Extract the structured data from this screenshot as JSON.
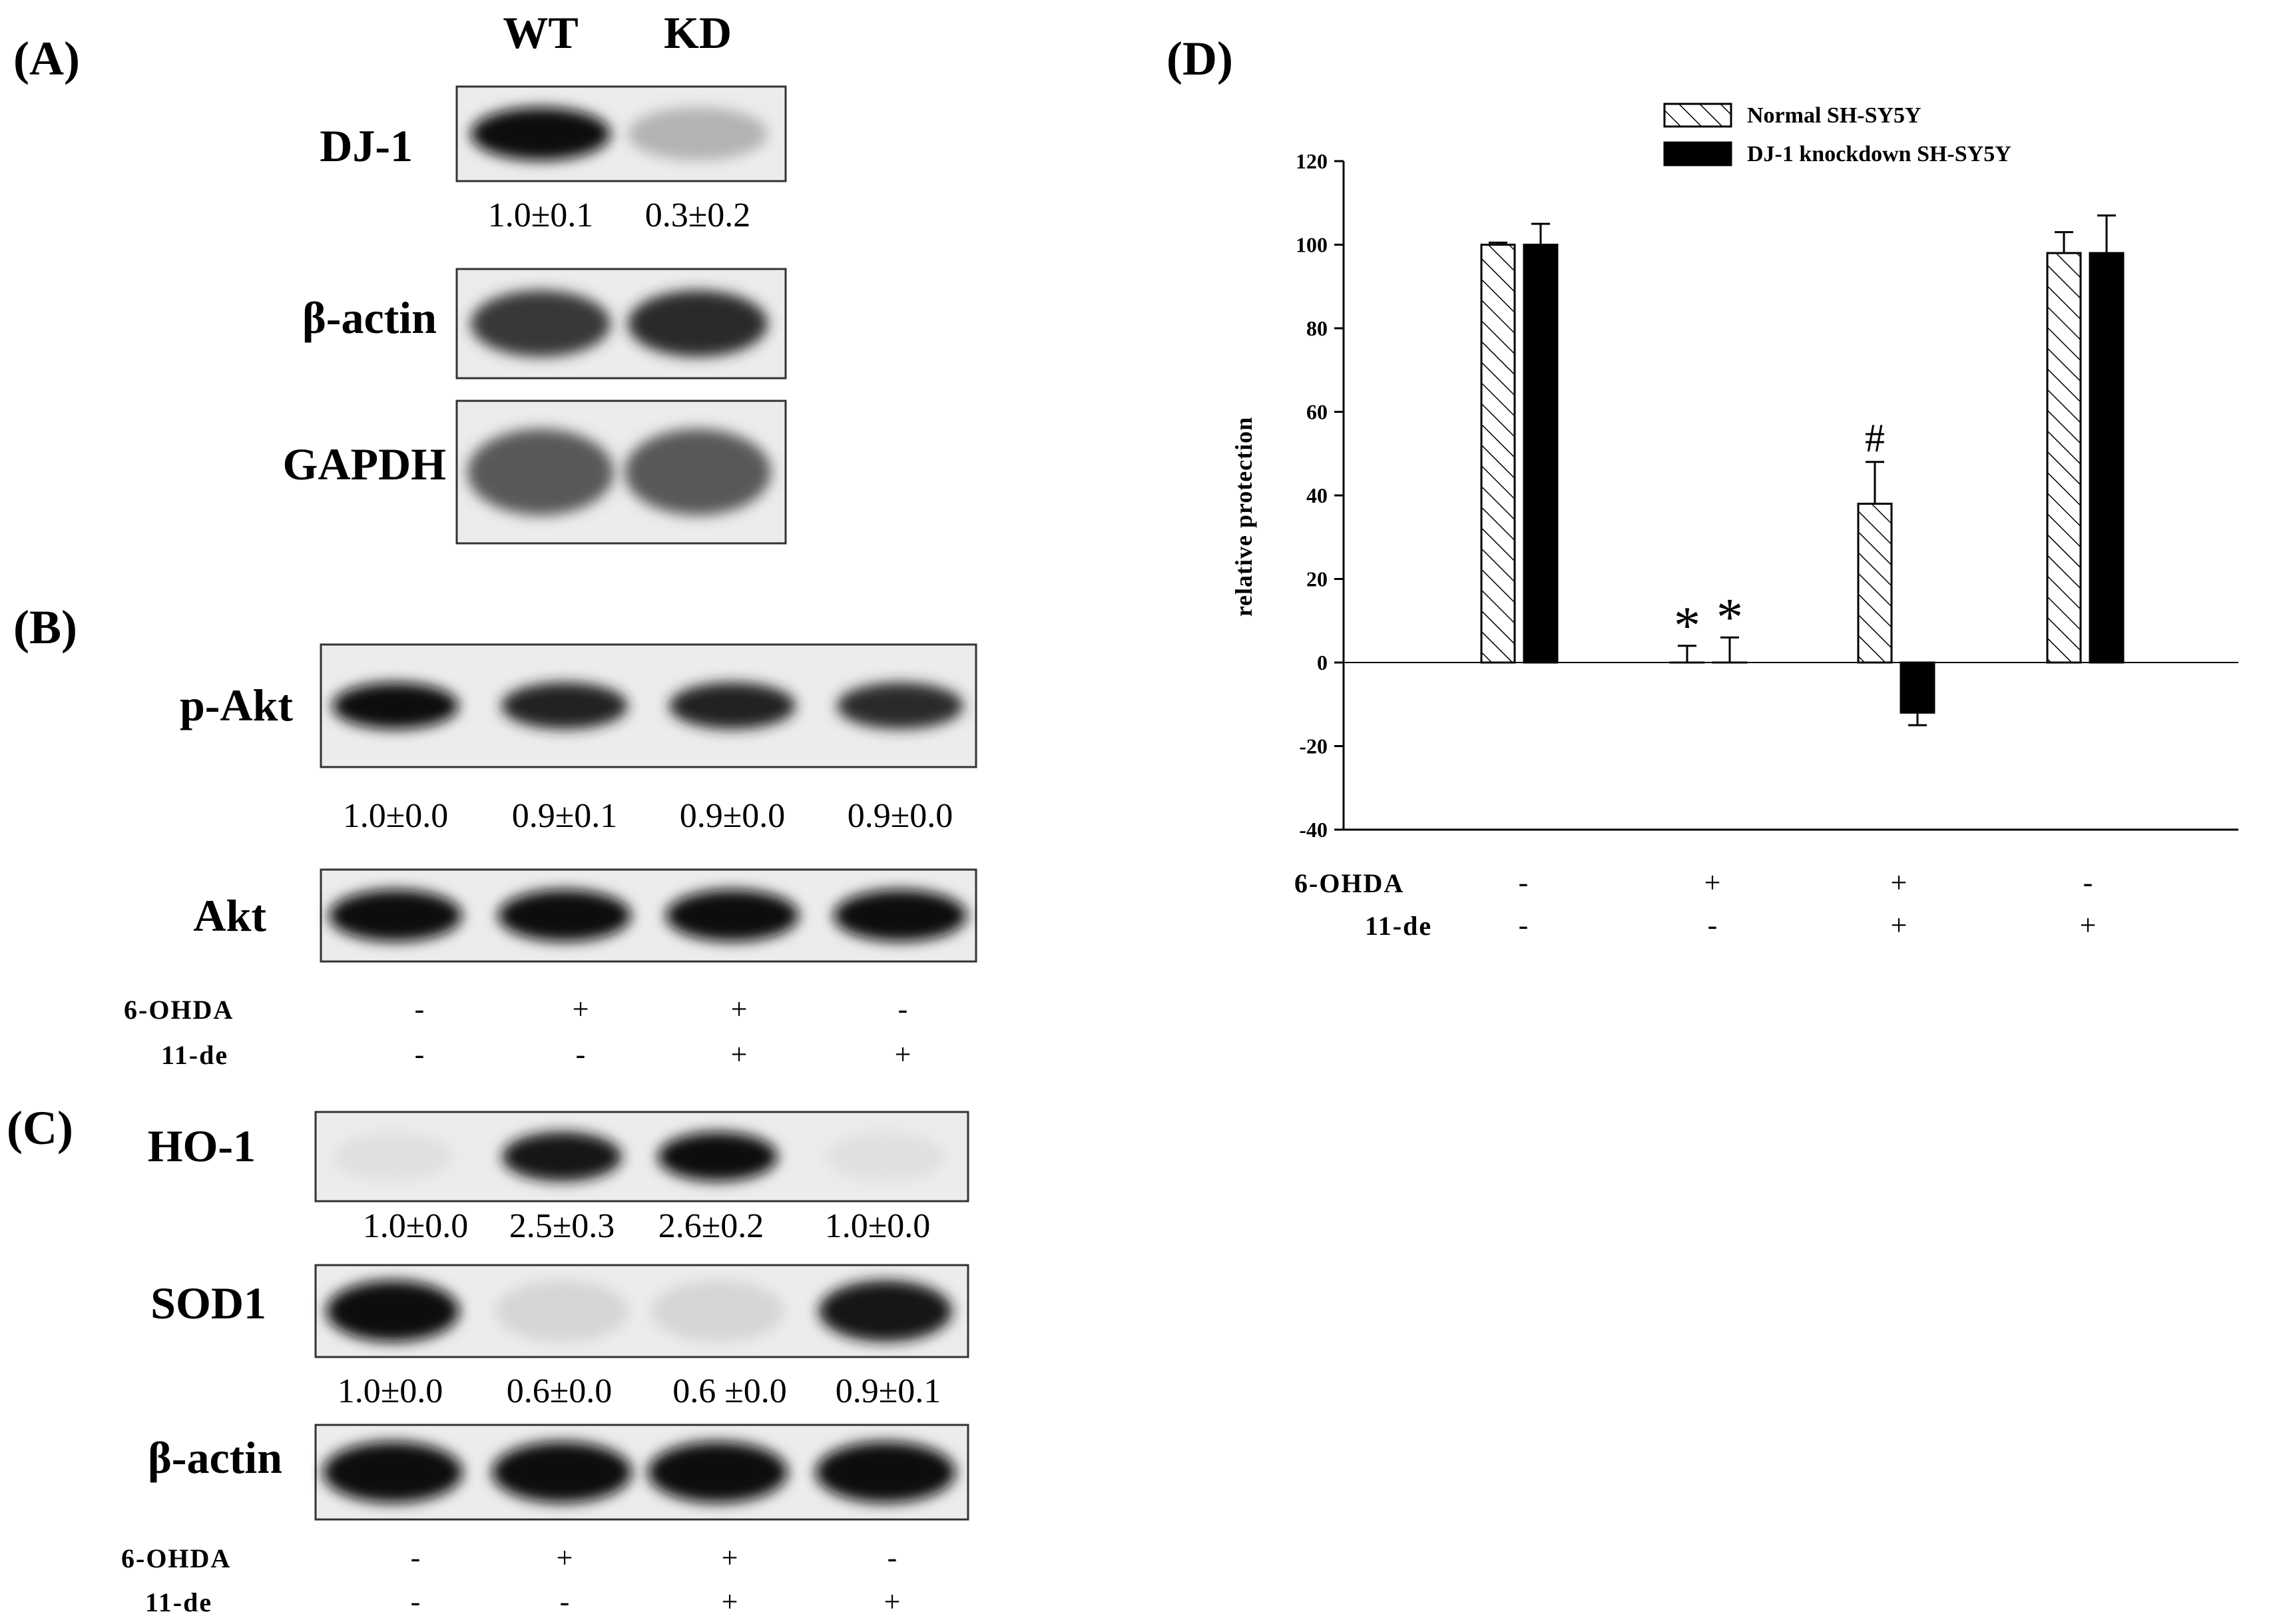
{
  "panel_labels": [
    "(A)",
    "(B)",
    "(C)",
    "(D)"
  ],
  "panel_a": {
    "lanes": [
      "WT",
      "KD"
    ],
    "blots": [
      {
        "name": "DJ-1",
        "quant": [
          "1.0±0.1",
          "0.3±0.2"
        ],
        "intensity": [
          1.0,
          0.25
        ]
      },
      {
        "name": "β-actin",
        "quant": [],
        "intensity": [
          0.8,
          0.85
        ]
      },
      {
        "name": "GAPDH",
        "quant": [],
        "intensity": [
          0.65,
          0.65
        ]
      }
    ]
  },
  "panel_b": {
    "blots": [
      {
        "name": "p-Akt",
        "quant": [
          "1.0±0.0",
          "0.9±0.1",
          "0.9±0.0",
          "0.9±0.0"
        ],
        "intensity": [
          1.0,
          0.9,
          0.9,
          0.85
        ]
      },
      {
        "name": "Akt",
        "quant": [],
        "intensity": [
          1.0,
          1.0,
          1.0,
          1.0
        ]
      }
    ],
    "treatments": [
      {
        "name": "6-OHDA",
        "signs": [
          "-",
          "+",
          "+",
          "-"
        ]
      },
      {
        "name": "11-de",
        "signs": [
          "-",
          "-",
          "+",
          "+"
        ]
      }
    ]
  },
  "panel_c": {
    "blots": [
      {
        "name": "HO-1",
        "quant": [
          "1.0±0.0",
          "2.5±0.3",
          "2.6±0.2",
          "1.0±0.0"
        ],
        "intensity": [
          0.05,
          0.95,
          1.0,
          0.05
        ]
      },
      {
        "name": "SOD1",
        "quant": [
          "1.0±0.0",
          "0.6±0.0",
          "0.6 ±0.0",
          "0.9±0.1"
        ],
        "intensity": [
          1.0,
          0.1,
          0.1,
          0.95
        ]
      },
      {
        "name": "β-actin",
        "quant": [],
        "intensity": [
          1.0,
          1.0,
          1.0,
          1.0
        ]
      }
    ],
    "treatments": [
      {
        "name": "6-OHDA",
        "signs": [
          "-",
          "+",
          "+",
          "-"
        ]
      },
      {
        "name": "11-de",
        "signs": [
          "-",
          "-",
          "+",
          "+"
        ]
      }
    ]
  },
  "chart_data": {
    "type": "bar",
    "title": "",
    "ylabel": "relative protection",
    "xlabel": "",
    "ylim": [
      -40,
      120
    ],
    "yticks": [
      -40,
      -20,
      0,
      20,
      40,
      60,
      80,
      100,
      120
    ],
    "grid": false,
    "legend_position": "top",
    "categories": [
      "1",
      "2",
      "3",
      "4"
    ],
    "series": [
      {
        "name": "Normal SH-SY5Y",
        "pattern": "hatched",
        "values": [
          100,
          0,
          38,
          98
        ],
        "errors": [
          0.5,
          4,
          10,
          5
        ]
      },
      {
        "name": "DJ-1 knockdown SH-SY5Y",
        "pattern": "solid",
        "values": [
          100,
          0,
          -12,
          98
        ],
        "errors": [
          5,
          6,
          3,
          9
        ]
      }
    ],
    "annotations": [
      {
        "text": "*",
        "category": 1,
        "series": 0
      },
      {
        "text": "*",
        "category": 1,
        "series": 1
      },
      {
        "text": "#",
        "category": 2,
        "series": 0
      }
    ],
    "treatments": [
      {
        "name": "6-OHDA",
        "signs": [
          "-",
          "+",
          "+",
          "-"
        ]
      },
      {
        "name": "11-de",
        "signs": [
          "-",
          "-",
          "+",
          "+"
        ]
      }
    ]
  }
}
